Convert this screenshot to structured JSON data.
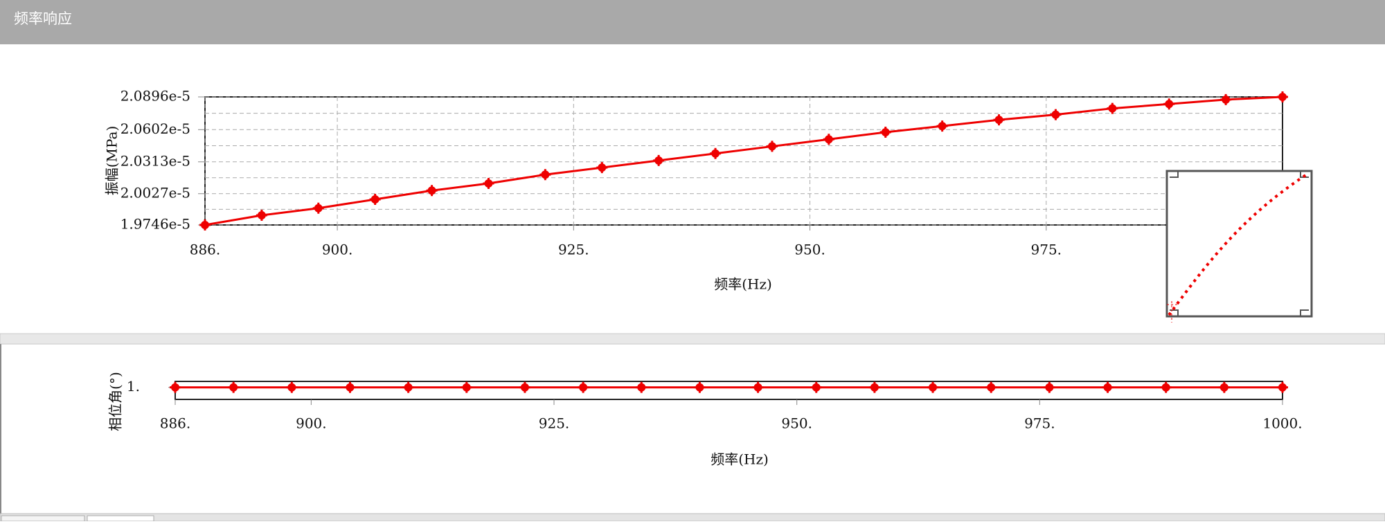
{
  "window": {
    "title": "频率响应"
  },
  "chart_data": [
    {
      "type": "line",
      "xlabel": "频率(Hz)",
      "ylabel": "振幅(MPa)",
      "color": "#ee0000",
      "grid": true,
      "x": [
        886,
        892,
        898,
        904,
        910,
        916,
        922,
        928,
        934,
        940,
        946,
        952,
        958,
        964,
        970,
        976,
        982,
        988,
        994,
        1000
      ],
      "values": [
        1.9746e-05,
        1.9833e-05,
        1.9897e-05,
        1.9976e-05,
        2.0055e-05,
        2.0119e-05,
        2.0198e-05,
        2.0261e-05,
        2.0325e-05,
        2.0388e-05,
        2.0452e-05,
        2.0515e-05,
        2.0579e-05,
        2.0634e-05,
        2.069e-05,
        2.0737e-05,
        2.0793e-05,
        2.0832e-05,
        2.0872e-05,
        2.0896e-05
      ],
      "xlim": [
        886,
        1000
      ],
      "xticks": [
        {
          "value": 886,
          "label": "886."
        },
        {
          "value": 900,
          "label": "900."
        },
        {
          "value": 925,
          "label": "925."
        },
        {
          "value": 950,
          "label": "950."
        },
        {
          "value": 975,
          "label": "975."
        }
      ],
      "ylim": [
        1.9746e-05,
        2.0896e-05
      ],
      "yticks": [
        {
          "value": 1.9746e-05,
          "label": "1.9746e-5"
        },
        {
          "value": 2.0027e-05,
          "label": "2.0027e-5"
        },
        {
          "value": 2.0313e-05,
          "label": "2.0313e-5"
        },
        {
          "value": 2.0602e-05,
          "label": "2.0602e-5"
        },
        {
          "value": 2.0896e-05,
          "label": "2.0896e-5"
        }
      ]
    },
    {
      "type": "line",
      "xlabel": "频率(Hz)",
      "ylabel": "相位角(°)",
      "color": "#ee0000",
      "grid": false,
      "x": [
        886,
        892,
        898,
        904,
        910,
        916,
        922,
        928,
        934,
        940,
        946,
        952,
        958,
        964,
        970,
        976,
        982,
        988,
        994,
        1000
      ],
      "values": [
        1,
        1,
        1,
        1,
        1,
        1,
        1,
        1,
        1,
        1,
        1,
        1,
        1,
        1,
        1,
        1,
        1,
        1,
        1,
        1
      ],
      "xlim": [
        886,
        1000
      ],
      "xticks": [
        {
          "value": 886,
          "label": "886."
        },
        {
          "value": 900,
          "label": "900."
        },
        {
          "value": 925,
          "label": "925."
        },
        {
          "value": 950,
          "label": "950."
        },
        {
          "value": 975,
          "label": "975."
        },
        {
          "value": 1000,
          "label": "1000."
        }
      ],
      "ylim": [
        0,
        1.5
      ],
      "yticks": [
        {
          "value": 1,
          "label": "1."
        }
      ]
    }
  ]
}
